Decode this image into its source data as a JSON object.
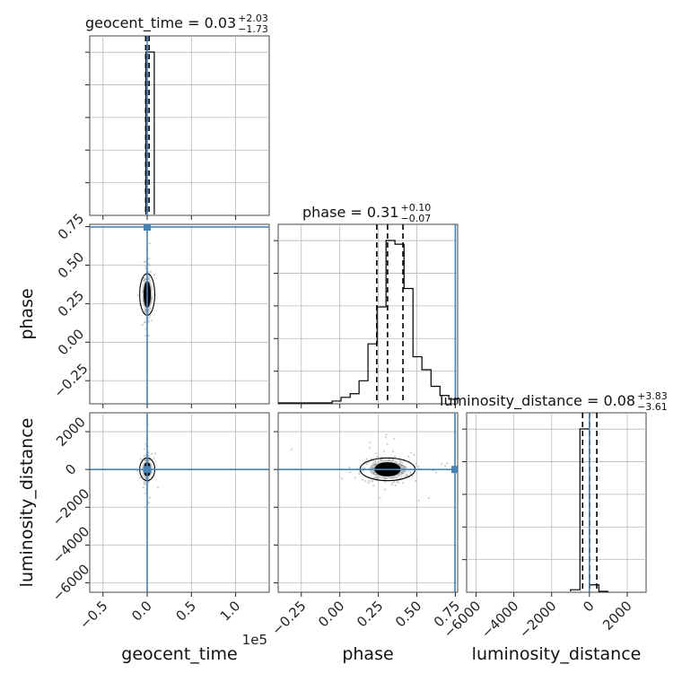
{
  "chart_data": {
    "type": "scatter",
    "kind": "corner-plot",
    "grid": true,
    "parameters": [
      "geocent_time",
      "phase",
      "luminosity_distance"
    ],
    "axis_labels": {
      "geocent_time": "geocent_time",
      "phase": "phase",
      "luminosity_distance": "luminosity_distance"
    },
    "offset_text": {
      "geocent_time": "1e5"
    },
    "ranges": {
      "geocent_time": [
        -0.65,
        1.38
      ],
      "phase": [
        -0.4,
        0.765
      ],
      "luminosity_distance": [
        -6500,
        3000
      ]
    },
    "ticks": {
      "geocent_time": {
        "values": [
          -0.5,
          0.0,
          0.5,
          1.0
        ],
        "labels": [
          "−0.5",
          "0.0",
          "0.5",
          "1.0"
        ]
      },
      "phase": {
        "values": [
          -0.25,
          0.0,
          0.25,
          0.5,
          0.75
        ],
        "labels": [
          "−0.25",
          "0.00",
          "0.25",
          "0.50",
          "0.75"
        ]
      },
      "luminosity_distance": {
        "values": [
          -6000,
          -4000,
          -2000,
          0,
          2000
        ],
        "labels": [
          "−6000",
          "−4000",
          "−2000",
          "0",
          "2000"
        ]
      }
    },
    "titles": {
      "geocent_time": {
        "main": "geocent_time = 0.03",
        "plus": "+2.03",
        "minus": "−1.73"
      },
      "phase": {
        "main": "phase = 0.31",
        "plus": "+0.10",
        "minus": "−0.07"
      },
      "luminosity_distance": {
        "main": "luminosity_distance = 0.08",
        "plus": "+3.83",
        "minus": "−3.61"
      }
    },
    "truths": {
      "geocent_time": 0.0,
      "phase": 0.75,
      "luminosity_distance": 0
    },
    "truth_color": "#4682b4",
    "quantiles": {
      "geocent_time": [
        -0.017,
        0.0003,
        0.021
      ],
      "phase": [
        0.24,
        0.31,
        0.41
      ],
      "luminosity_distance": [
        -361,
        8,
        391
      ]
    },
    "histograms": {
      "geocent_time": {
        "bins": [
          -0.015,
          0.0,
          0.08
        ],
        "counts": [
          1.0,
          1.0
        ]
      },
      "phase": {
        "bins": [
          -0.4,
          -0.342,
          -0.283,
          -0.225,
          -0.167,
          -0.108,
          -0.05,
          0.008,
          0.067,
          0.125,
          0.183,
          0.242,
          0.3,
          0.358,
          0.417,
          0.475,
          0.533,
          0.592,
          0.65,
          0.708,
          0.765
        ],
        "counts": [
          0,
          0,
          0,
          0,
          0,
          0,
          0.01,
          0.03,
          0.05,
          0.12,
          0.32,
          0.52,
          0.88,
          0.86,
          0.62,
          0.25,
          0.18,
          0.09,
          0.04,
          0.02
        ]
      },
      "luminosity_distance": {
        "bins": [
          -1000,
          -500,
          0,
          500,
          1000
        ],
        "counts": [
          0.01,
          1.0,
          0.04,
          0.0
        ]
      }
    },
    "color": "#000000",
    "sample_color": "#bbbbbb"
  }
}
